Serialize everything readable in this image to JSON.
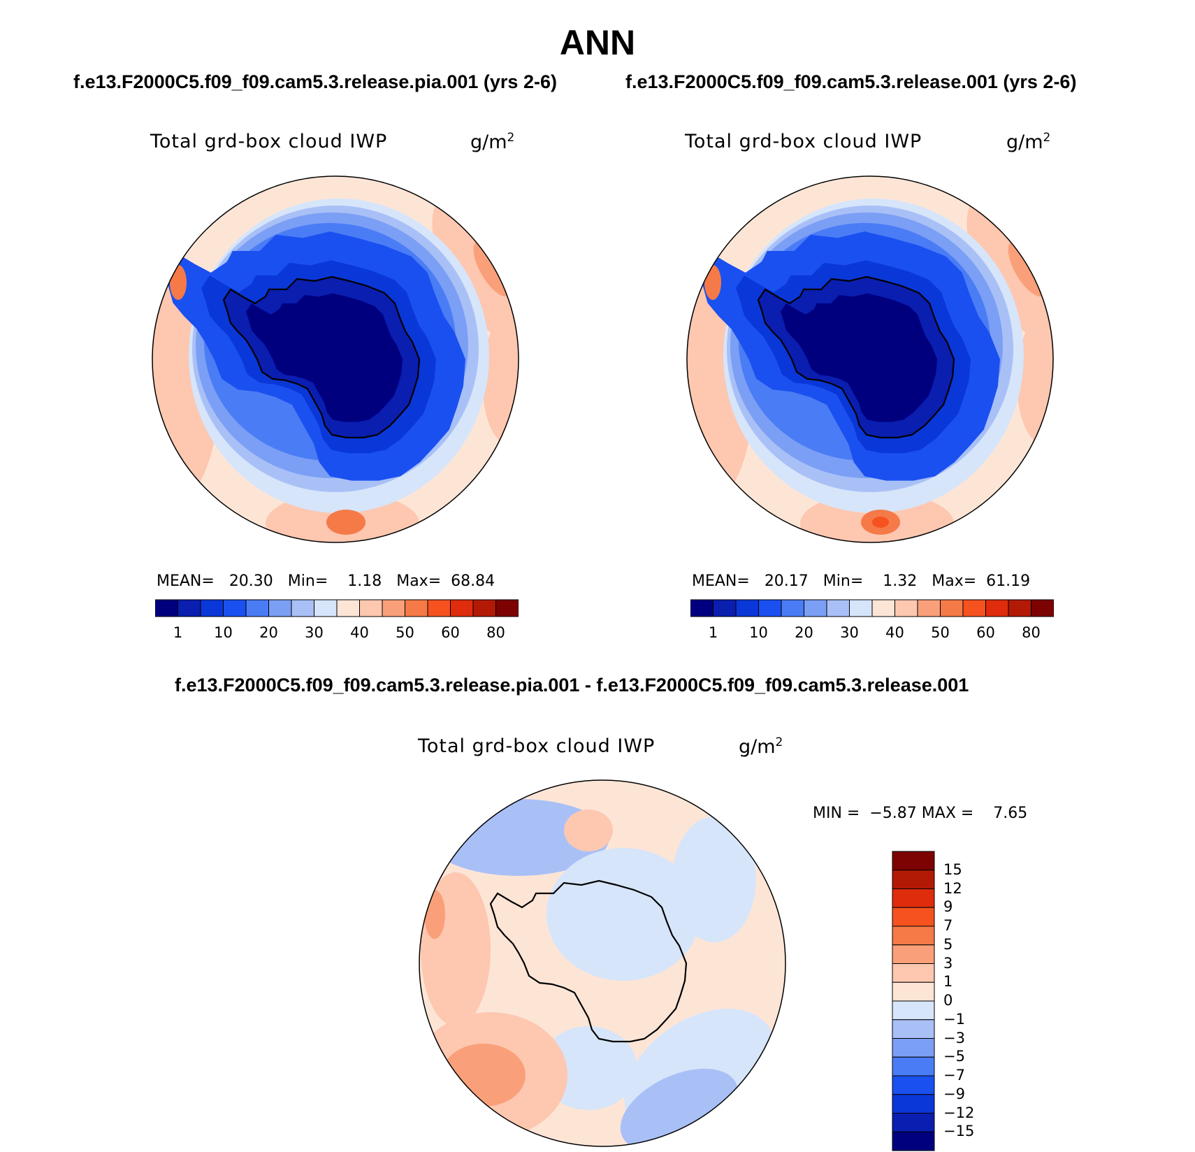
{
  "header": {
    "season": "ANN",
    "case_left": "f.e13.F2000C5.f09_f09.cam5.3.release.pia.001 (yrs 2-6)",
    "case_right": "f.e13.F2000C5.f09_f09.cam5.3.release.001 (yrs 2-6)",
    "diff_title": "f.e13.F2000C5.f09_f09.cam5.3.release.pia.001 - f.e13.F2000C5.f09_f09.cam5.3.release.001"
  },
  "colors": {
    "abs_scale": [
      "#00007f",
      "#0a1eb0",
      "#0a37d8",
      "#1a50f0",
      "#4a7cf5",
      "#7b9ff5",
      "#a9c0f7",
      "#d6e5fa",
      "#fde5d6",
      "#fdc7b0",
      "#f9a07a",
      "#f57a48",
      "#f55220",
      "#de2c0c",
      "#b21a05",
      "#7d0202"
    ],
    "diff_scale": [
      "#00007f",
      "#0a1eb0",
      "#0a37d8",
      "#1a50f0",
      "#4a7cf5",
      "#7b9ff5",
      "#a9c0f7",
      "#d6e5fa",
      "#fde5d6",
      "#fdc7b0",
      "#f9a07a",
      "#f57a48",
      "#f55220",
      "#de2c0c",
      "#b21a05",
      "#7d0202"
    ]
  },
  "chart_data": [
    {
      "type": "heatmap",
      "projection": "south polar stereographic",
      "title": "f.e13.F2000C5.f09_f09.cam5.3.release.pia.001 (yrs 2-6)",
      "variable": "Total grd-box cloud IWP",
      "units": "g/m",
      "units_exp": "2",
      "stats": {
        "mean_label": "MEAN=",
        "mean": "20.30",
        "min_label": "Min=",
        "min": "1.18",
        "max_label": "Max=",
        "max": "68.84"
      },
      "colorbar_ticks": [
        "1",
        "10",
        "20",
        "30",
        "40",
        "50",
        "60",
        "80"
      ],
      "colorbar_orientation": "horizontal"
    },
    {
      "type": "heatmap",
      "projection": "south polar stereographic",
      "title": "f.e13.F2000C5.f09_f09.cam5.3.release.001 (yrs 2-6)",
      "variable": "Total grd-box cloud IWP",
      "units": "g/m",
      "units_exp": "2",
      "stats": {
        "mean_label": "MEAN=",
        "mean": "20.17",
        "min_label": "Min=",
        "min": "1.32",
        "max_label": "Max=",
        "max": "61.19"
      },
      "colorbar_ticks": [
        "1",
        "10",
        "20",
        "30",
        "40",
        "50",
        "60",
        "80"
      ],
      "colorbar_orientation": "horizontal"
    },
    {
      "type": "heatmap",
      "projection": "south polar stereographic",
      "title": "f.e13.F2000C5.f09_f09.cam5.3.release.pia.001 - f.e13.F2000C5.f09_f09.cam5.3.release.001",
      "variable": "Total grd-box cloud IWP",
      "units": "g/m",
      "units_exp": "2",
      "stats": {
        "min_label": "MIN =",
        "min": "−5.87",
        "max_label": "MAX =",
        "max": "7.65"
      },
      "colorbar_ticks": [
        "15",
        "12",
        "9",
        "7",
        "5",
        "3",
        "1",
        "0",
        "−1",
        "−3",
        "−5",
        "−7",
        "−9",
        "−12",
        "−15"
      ],
      "colorbar_orientation": "vertical"
    }
  ]
}
